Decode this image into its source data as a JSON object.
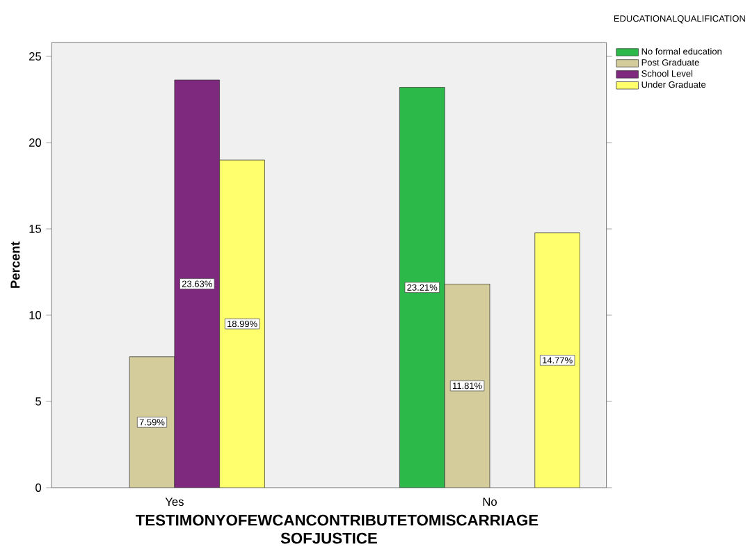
{
  "chart_data": {
    "type": "bar",
    "xlabel": "TESTIMONYOFEWCANCONTRIBUTETOMISCARRIAGE SOFJUSTICE",
    "ylabel": "Percent",
    "legend_title": "EDUCATIONALQUALIFICATION",
    "categories": [
      "Yes",
      "No"
    ],
    "series": [
      {
        "name": "No formal education",
        "color": "#2db84a",
        "values": [
          null,
          23.21
        ],
        "value_labels": [
          null,
          "23.21%"
        ]
      },
      {
        "name": "Post Graduate",
        "color": "#d4cd9b",
        "values": [
          7.59,
          11.81
        ],
        "value_labels": [
          "7.59%",
          "11.81%"
        ]
      },
      {
        "name": "School Level",
        "color": "#7e287e",
        "values": [
          23.63,
          null
        ],
        "value_labels": [
          "23.63%",
          null
        ]
      },
      {
        "name": "Under Graduate",
        "color": "#ffff6e",
        "values": [
          18.99,
          14.77
        ],
        "value_labels": [
          "18.99%",
          "14.77%"
        ]
      }
    ],
    "ylim": [
      0,
      25.8
    ],
    "yticks": [
      0,
      5,
      10,
      15,
      20,
      25
    ],
    "grid": false,
    "legend": "top right"
  }
}
